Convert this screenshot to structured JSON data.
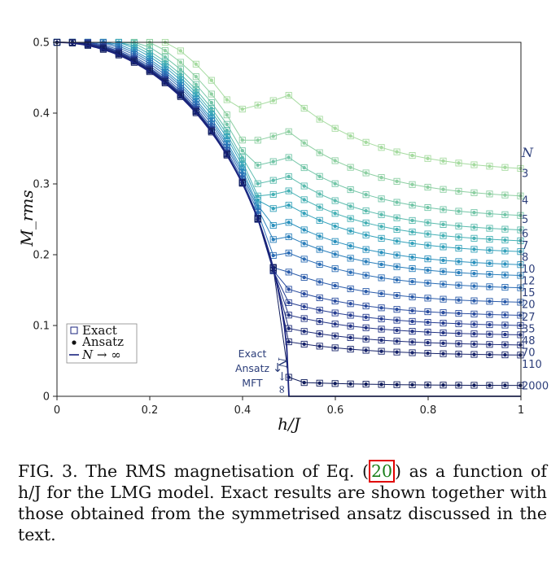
{
  "chart_data": {
    "type": "scatter",
    "xlabel": "h/J",
    "ylabel": "M_rms",
    "xlim": [
      0,
      1
    ],
    "ylim": [
      0,
      0.5
    ],
    "xticks": [
      "0",
      "0.2",
      "0.4",
      "0.6",
      "0.8",
      "1"
    ],
    "yticks": [
      "0",
      "0.1",
      "0.2",
      "0.3",
      "0.4",
      "0.5"
    ],
    "curve_label_header": "N",
    "series": [
      {
        "name": "3",
        "tail": 0.315,
        "color": "#a6dba0"
      },
      {
        "name": "4",
        "tail": 0.277,
        "color": "#8fd0a3"
      },
      {
        "name": "5",
        "tail": 0.25,
        "color": "#74c6a8"
      },
      {
        "name": "6",
        "tail": 0.23,
        "color": "#5dbcae"
      },
      {
        "name": "7",
        "tail": 0.215,
        "color": "#47b1b5"
      },
      {
        "name": "8",
        "tail": 0.2,
        "color": "#35a2bb"
      },
      {
        "name": "10",
        "tail": 0.182,
        "color": "#2b91bd"
      },
      {
        "name": "12",
        "tail": 0.167,
        "color": "#2b7fbb"
      },
      {
        "name": "15",
        "tail": 0.15,
        "color": "#2c6db5"
      },
      {
        "name": "20",
        "tail": 0.13,
        "color": "#2c5caa"
      },
      {
        "name": "27",
        "tail": 0.112,
        "color": "#2b4d9f"
      },
      {
        "name": "35",
        "tail": 0.098,
        "color": "#283f92"
      },
      {
        "name": "48",
        "tail": 0.085,
        "color": "#233484"
      },
      {
        "name": "70",
        "tail": 0.071,
        "color": "#1d2b77"
      },
      {
        "name": "110",
        "tail": 0.057,
        "color": "#17236a"
      },
      {
        "name": "2000",
        "tail": 0.015,
        "color": "#0e1a5a"
      }
    ],
    "legend": {
      "exact": "Exact",
      "ansatz": "Ansatz",
      "limit": "N → ∞"
    },
    "annotation": {
      "exact": "Exact",
      "ansatz": "Ansatz",
      "arrow": "↓",
      "mft": "MFT",
      "n_arrow": "N → ∞"
    }
  },
  "caption": {
    "prefix": "FIG. 3. The RMS magnetisation of Eq. (",
    "ref": "20",
    "suffix": ") as a function of h/J for the LMG model. Exact results are shown together with those obtained from the symmetrised ansatz discussed in the text."
  },
  "colors": {
    "axis": "#222222",
    "limit_line": "#1a237e",
    "ref_box": "#e00000"
  }
}
